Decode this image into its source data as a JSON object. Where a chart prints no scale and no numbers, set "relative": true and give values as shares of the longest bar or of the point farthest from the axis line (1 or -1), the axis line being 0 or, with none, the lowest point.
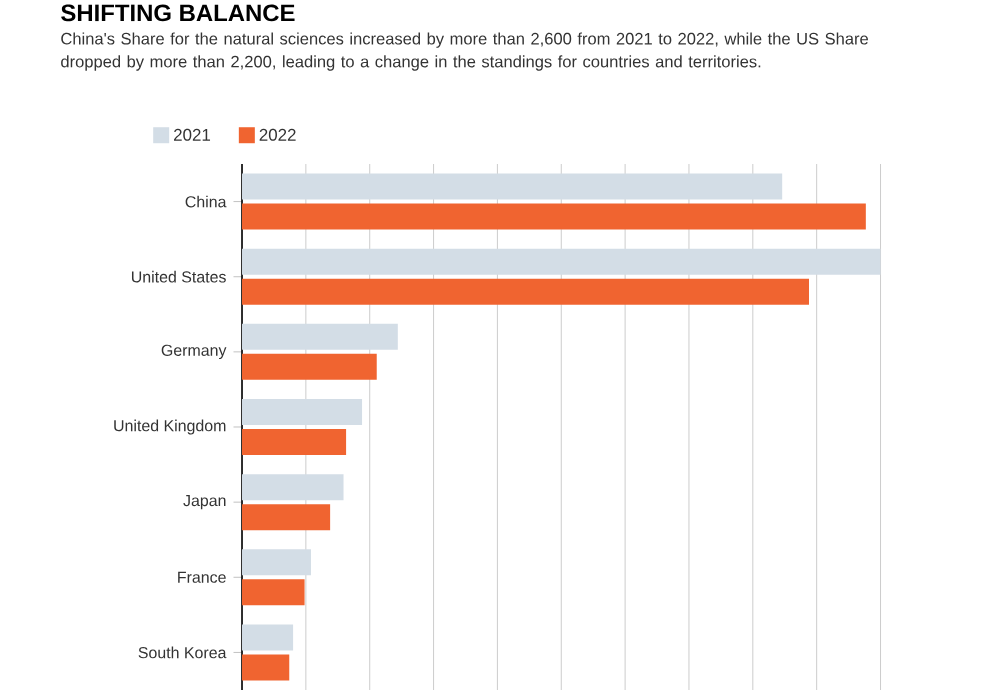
{
  "chart_data": {
    "type": "bar",
    "orientation": "horizontal",
    "relative": true,
    "title": "SHIFTING BALANCE",
    "subtitle": "China's Share for the natural sciences increased by more than 2,600 from 2021 to 2022, while the US Share dropped by more than 2,200, leading to a change in the standings for countries and territories.",
    "categories": [
      "China",
      "United States",
      "Germany",
      "United Kingdom",
      "Japan",
      "France",
      "South Korea"
    ],
    "series": [
      {
        "name": "2021",
        "color": "#d3dde6",
        "values": [
          0.846,
          1,
          0.244,
          0.188,
          0.159,
          0.108,
          0.08
        ]
      },
      {
        "name": "2022",
        "color": "#f06430",
        "values": [
          0.977,
          0.888,
          0.211,
          0.163,
          0.138,
          0.098,
          0.074
        ]
      }
    ],
    "grid": "x",
    "legend": "top left"
  }
}
